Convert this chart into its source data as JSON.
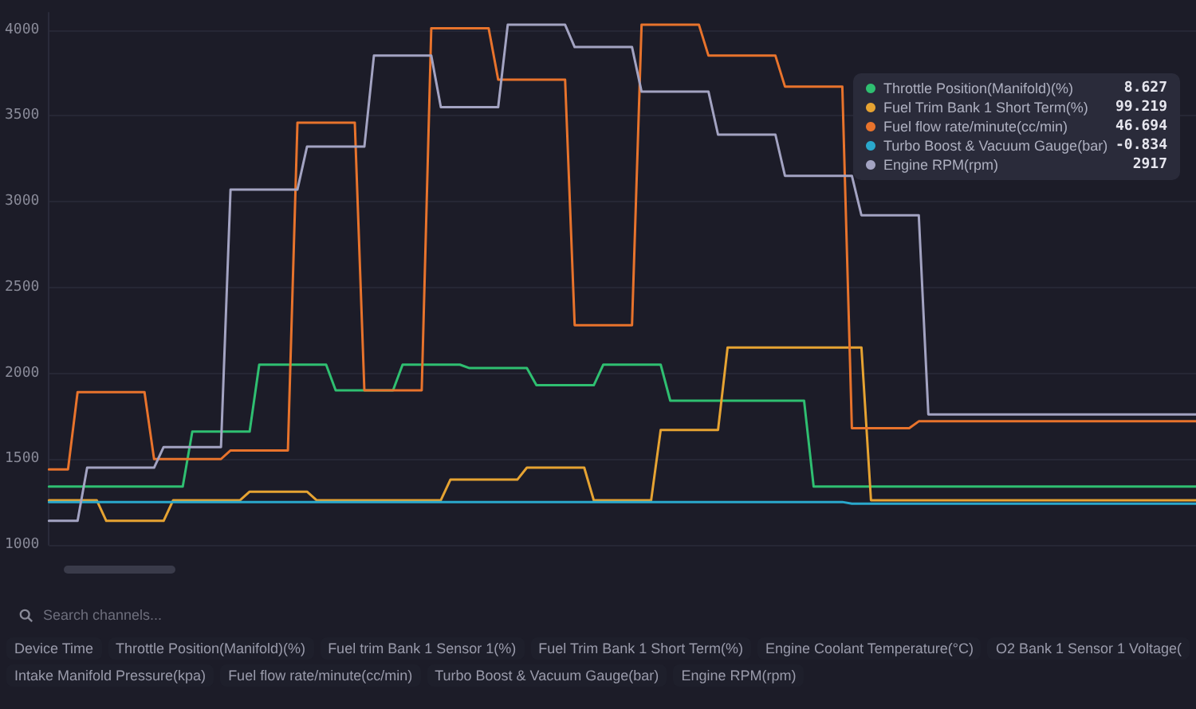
{
  "chart_data": {
    "type": "line",
    "categories": [
      null,
      null,
      null,
      null,
      null,
      null,
      null,
      null,
      null,
      null,
      null,
      null,
      null,
      null,
      null,
      null,
      null,
      null,
      null,
      null,
      null,
      null,
      null,
      null,
      null,
      null,
      null,
      null,
      null,
      null,
      null,
      null,
      null,
      null,
      null,
      null,
      null,
      null,
      null,
      null,
      null,
      null,
      null,
      null,
      null,
      null,
      null,
      null,
      null,
      null,
      null,
      null,
      null,
      null,
      null,
      null,
      null,
      null,
      null,
      null,
      null,
      null,
      null,
      null,
      null,
      null,
      null,
      null,
      null,
      null,
      null,
      null,
      null,
      null,
      null,
      null,
      null,
      null,
      null,
      null,
      null,
      null,
      null,
      null,
      null,
      null,
      null,
      null,
      null,
      null,
      null,
      null,
      null,
      null,
      null,
      null,
      null,
      null,
      null,
      null,
      null,
      null,
      null,
      null,
      null,
      null,
      null,
      null,
      null,
      null,
      null,
      null,
      null,
      null,
      null,
      null,
      null,
      null,
      null,
      null,
      null
    ],
    "ylim": [
      1000,
      4100
    ],
    "yticks": [
      1000,
      1500,
      2000,
      2500,
      3000,
      3500,
      4000
    ],
    "tick_labels": "y",
    "grid": "y",
    "legend": "top right",
    "line_style": "solid",
    "series": [
      {
        "name": "Throttle Position(Manifold)(%)",
        "color": "#2fbf71",
        "values": [
          1340,
          1340,
          1340,
          1340,
          1340,
          1340,
          1340,
          1340,
          1340,
          1340,
          1340,
          1340,
          1340,
          1340,
          1340,
          1660,
          1660,
          1660,
          1660,
          1660,
          1660,
          1660,
          2050,
          2050,
          2050,
          2050,
          2050,
          2050,
          2050,
          2050,
          1900,
          1900,
          1900,
          1900,
          1900,
          1900,
          1900,
          2050,
          2050,
          2050,
          2050,
          2050,
          2050,
          2050,
          2030,
          2030,
          2030,
          2030,
          2030,
          2030,
          2030,
          1930,
          1930,
          1930,
          1930,
          1930,
          1930,
          1930,
          2050,
          2050,
          2050,
          2050,
          2050,
          2050,
          2050,
          1840,
          1840,
          1840,
          1840,
          1840,
          1840,
          1840,
          1840,
          1840,
          1840,
          1840,
          1840,
          1840,
          1840,
          1840,
          1340,
          1340,
          1340,
          1340,
          1340,
          1340,
          1340,
          1340,
          1340,
          1340,
          1340,
          1340,
          1340,
          1340,
          1340,
          1340,
          1340,
          1340,
          1340,
          1340,
          1340,
          1340,
          1340,
          1340,
          1340,
          1340,
          1340,
          1340,
          1340,
          1340,
          1340,
          1340,
          1340,
          1340,
          1340,
          1340,
          1340,
          1340,
          1340,
          1340,
          1340
        ]
      },
      {
        "name": "Fuel Trim Bank 1 Short Term(%)",
        "color": "#e6a332",
        "values": [
          1260,
          1260,
          1260,
          1260,
          1260,
          1260,
          1140,
          1140,
          1140,
          1140,
          1140,
          1140,
          1140,
          1260,
          1260,
          1260,
          1260,
          1260,
          1260,
          1260,
          1260,
          1310,
          1310,
          1310,
          1310,
          1310,
          1310,
          1310,
          1260,
          1260,
          1260,
          1260,
          1260,
          1260,
          1260,
          1260,
          1260,
          1260,
          1260,
          1260,
          1260,
          1260,
          1380,
          1380,
          1380,
          1380,
          1380,
          1380,
          1380,
          1380,
          1450,
          1450,
          1450,
          1450,
          1450,
          1450,
          1450,
          1260,
          1260,
          1260,
          1260,
          1260,
          1260,
          1260,
          1670,
          1670,
          1670,
          1670,
          1670,
          1670,
          1670,
          2150,
          2150,
          2150,
          2150,
          2150,
          2150,
          2150,
          2150,
          2150,
          2150,
          2150,
          2150,
          2150,
          2150,
          2150,
          1260,
          1260,
          1260,
          1260,
          1260,
          1260,
          1260,
          1260,
          1260,
          1260,
          1260,
          1260,
          1260,
          1260,
          1260,
          1260,
          1260,
          1260,
          1260,
          1260,
          1260,
          1260,
          1260,
          1260,
          1260,
          1260,
          1260,
          1260,
          1260,
          1260,
          1260,
          1260,
          1260,
          1260,
          1260
        ]
      },
      {
        "name": "Fuel flow rate/minute(cc/min)",
        "color": "#e8732c",
        "values": [
          1440,
          1440,
          1440,
          1890,
          1890,
          1890,
          1890,
          1890,
          1890,
          1890,
          1890,
          1500,
          1500,
          1500,
          1500,
          1500,
          1500,
          1500,
          1500,
          1550,
          1550,
          1550,
          1550,
          1550,
          1550,
          1550,
          3460,
          3460,
          3460,
          3460,
          3460,
          3460,
          3460,
          1900,
          1900,
          1900,
          1900,
          1900,
          1900,
          1900,
          4010,
          4010,
          4010,
          4010,
          4010,
          4010,
          4010,
          3710,
          3710,
          3710,
          3710,
          3710,
          3710,
          3710,
          3710,
          2280,
          2280,
          2280,
          2280,
          2280,
          2280,
          2280,
          4030,
          4030,
          4030,
          4030,
          4030,
          4030,
          4030,
          3850,
          3850,
          3850,
          3850,
          3850,
          3850,
          3850,
          3850,
          3670,
          3670,
          3670,
          3670,
          3670,
          3670,
          3670,
          1680,
          1680,
          1680,
          1680,
          1680,
          1680,
          1680,
          1720,
          1720,
          1720,
          1720,
          1720,
          1720,
          1720,
          1720,
          1720,
          1720,
          1720,
          1720,
          1720,
          1720,
          1720,
          1720,
          1720,
          1720,
          1720,
          1720,
          1720,
          1720,
          1720,
          1720,
          1720,
          1720,
          1720,
          1720,
          1720,
          1720
        ]
      },
      {
        "name": "Turbo Boost & Vacuum Gauge(bar)",
        "color": "#2aa8cc",
        "values": [
          1250,
          1250,
          1250,
          1250,
          1250,
          1250,
          1250,
          1250,
          1250,
          1250,
          1250,
          1250,
          1250,
          1250,
          1250,
          1250,
          1250,
          1250,
          1250,
          1250,
          1250,
          1250,
          1250,
          1250,
          1250,
          1250,
          1250,
          1250,
          1250,
          1250,
          1250,
          1250,
          1250,
          1250,
          1250,
          1250,
          1250,
          1250,
          1250,
          1250,
          1250,
          1250,
          1250,
          1250,
          1250,
          1250,
          1250,
          1250,
          1250,
          1250,
          1250,
          1250,
          1250,
          1250,
          1250,
          1250,
          1250,
          1250,
          1250,
          1250,
          1250,
          1250,
          1250,
          1250,
          1250,
          1250,
          1250,
          1250,
          1250,
          1250,
          1250,
          1250,
          1250,
          1250,
          1250,
          1250,
          1250,
          1250,
          1250,
          1250,
          1250,
          1250,
          1250,
          1250,
          1240,
          1240,
          1240,
          1240,
          1240,
          1240,
          1240,
          1240,
          1240,
          1240,
          1240,
          1240,
          1240,
          1240,
          1240,
          1240,
          1240,
          1240,
          1240,
          1240,
          1240,
          1240,
          1240,
          1240,
          1240,
          1240,
          1240,
          1240,
          1240,
          1240,
          1240,
          1240,
          1240,
          1240,
          1240,
          1240,
          1240
        ]
      },
      {
        "name": "Engine RPM(rpm)",
        "color": "#a3a3c2",
        "values": [
          1140,
          1140,
          1140,
          1140,
          1450,
          1450,
          1450,
          1450,
          1450,
          1450,
          1450,
          1450,
          1570,
          1570,
          1570,
          1570,
          1570,
          1570,
          1570,
          3070,
          3070,
          3070,
          3070,
          3070,
          3070,
          3070,
          3070,
          3320,
          3320,
          3320,
          3320,
          3320,
          3320,
          3320,
          3850,
          3850,
          3850,
          3850,
          3850,
          3850,
          3850,
          3550,
          3550,
          3550,
          3550,
          3550,
          3550,
          3550,
          4030,
          4030,
          4030,
          4030,
          4030,
          4030,
          4030,
          3900,
          3900,
          3900,
          3900,
          3900,
          3900,
          3900,
          3640,
          3640,
          3640,
          3640,
          3640,
          3640,
          3640,
          3640,
          3390,
          3390,
          3390,
          3390,
          3390,
          3390,
          3390,
          3150,
          3150,
          3150,
          3150,
          3150,
          3150,
          3150,
          3150,
          2920,
          2920,
          2920,
          2920,
          2920,
          2920,
          2920,
          1760,
          1760,
          1760,
          1760,
          1760,
          1760,
          1760,
          1760,
          1760,
          1760,
          1760,
          1760,
          1760,
          1760,
          1760,
          1760,
          1760,
          1760,
          1760,
          1760,
          1760,
          1760,
          1760,
          1760,
          1760,
          1760,
          1760,
          1760,
          1760
        ]
      }
    ],
    "annotations": [
      "8.627",
      "99.219",
      "46.694",
      "-0.834",
      "2917",
      "Search channels...",
      "Device Time",
      "Throttle Position(Manifold)(%)",
      "Fuel trim Bank 1 Sensor 1(%)",
      "Fuel Trim Bank 1 Short Term(%)",
      "Engine Coolant Temperature(°C)",
      "O2 Bank 1 Sensor 1 Voltage(",
      "Intake Manifold Pressure(kpa)",
      "Fuel flow rate/minute(cc/min)",
      "Turbo Boost & Vacuum Gauge(bar)",
      "Engine RPM(rpm)"
    ]
  }
}
